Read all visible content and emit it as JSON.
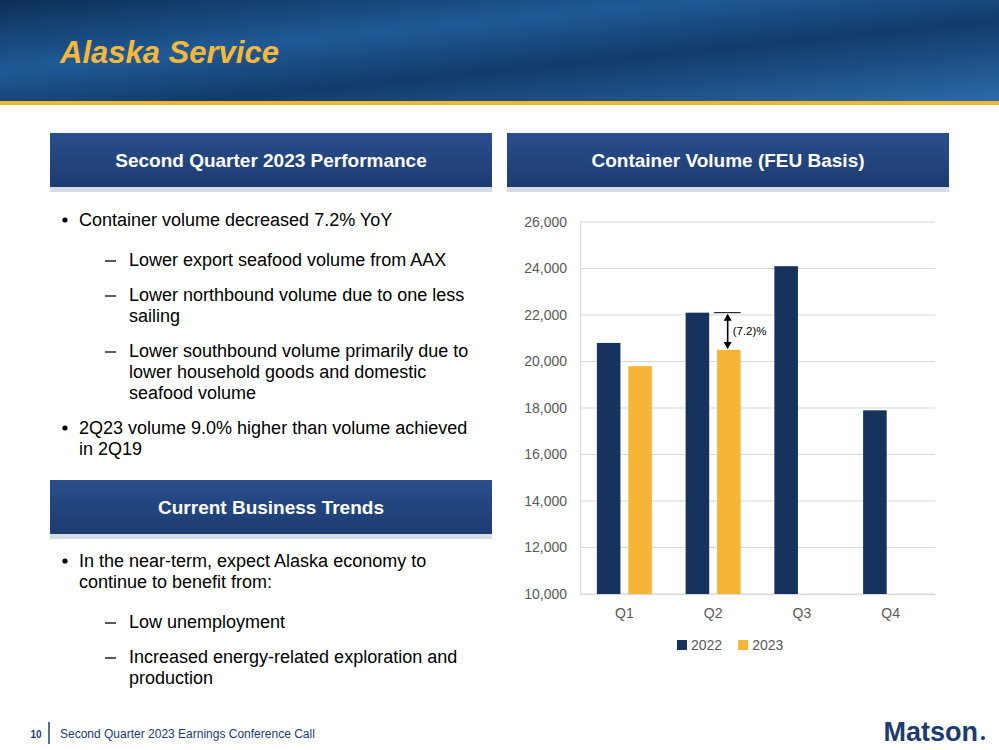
{
  "slide": {
    "title": "Alaska Service",
    "page_number": "10",
    "footer": "Second Quarter 2023 Earnings Conference Call",
    "logo": "Matson",
    "sections": [
      {
        "heading": "Second Quarter 2023 Performance",
        "bullets": [
          {
            "text": "Container volume decreased 7.2% YoY",
            "sub": [
              "Lower export seafood volume from AAX",
              "Lower northbound volume due to one less sailing",
              "Lower southbound volume primarily due to lower household goods and domestic seafood volume"
            ]
          },
          {
            "text": "2Q23 volume 9.0% higher than volume achieved in 2Q19",
            "sub": []
          }
        ]
      },
      {
        "heading": "Current Business Trends",
        "bullets": [
          {
            "text": "In the near-term, expect Alaska economy to continue to benefit from:",
            "sub": [
              "Low unemployment",
              "Increased energy-related exploration and production"
            ]
          }
        ]
      }
    ]
  },
  "chart_data": {
    "type": "bar",
    "title": "Container Volume (FEU Basis)",
    "categories": [
      "Q1",
      "Q2",
      "Q3",
      "Q4"
    ],
    "series": [
      {
        "name": "2022",
        "color": "#17325c",
        "values": [
          20800,
          22100,
          24100,
          17900
        ]
      },
      {
        "name": "2023",
        "color": "#f7b538",
        "values": [
          19800,
          20500,
          null,
          null
        ]
      }
    ],
    "ylim": [
      10000,
      26000
    ],
    "yticks": [
      {
        "value": 10000,
        "label": "10,000"
      },
      {
        "value": 12000,
        "label": "12,000"
      },
      {
        "value": 14000,
        "label": "14,000"
      },
      {
        "value": 16000,
        "label": "16,000"
      },
      {
        "value": 18000,
        "label": "18,000"
      },
      {
        "value": 20000,
        "label": "20,000"
      },
      {
        "value": 22000,
        "label": "22,000"
      },
      {
        "value": 24000,
        "label": "24,000"
      },
      {
        "value": 26000,
        "label": "26,000"
      }
    ],
    "grid": true,
    "legend": "bottom",
    "annotations": [
      {
        "text": "(7.2)%",
        "category": "Q2"
      }
    ]
  }
}
